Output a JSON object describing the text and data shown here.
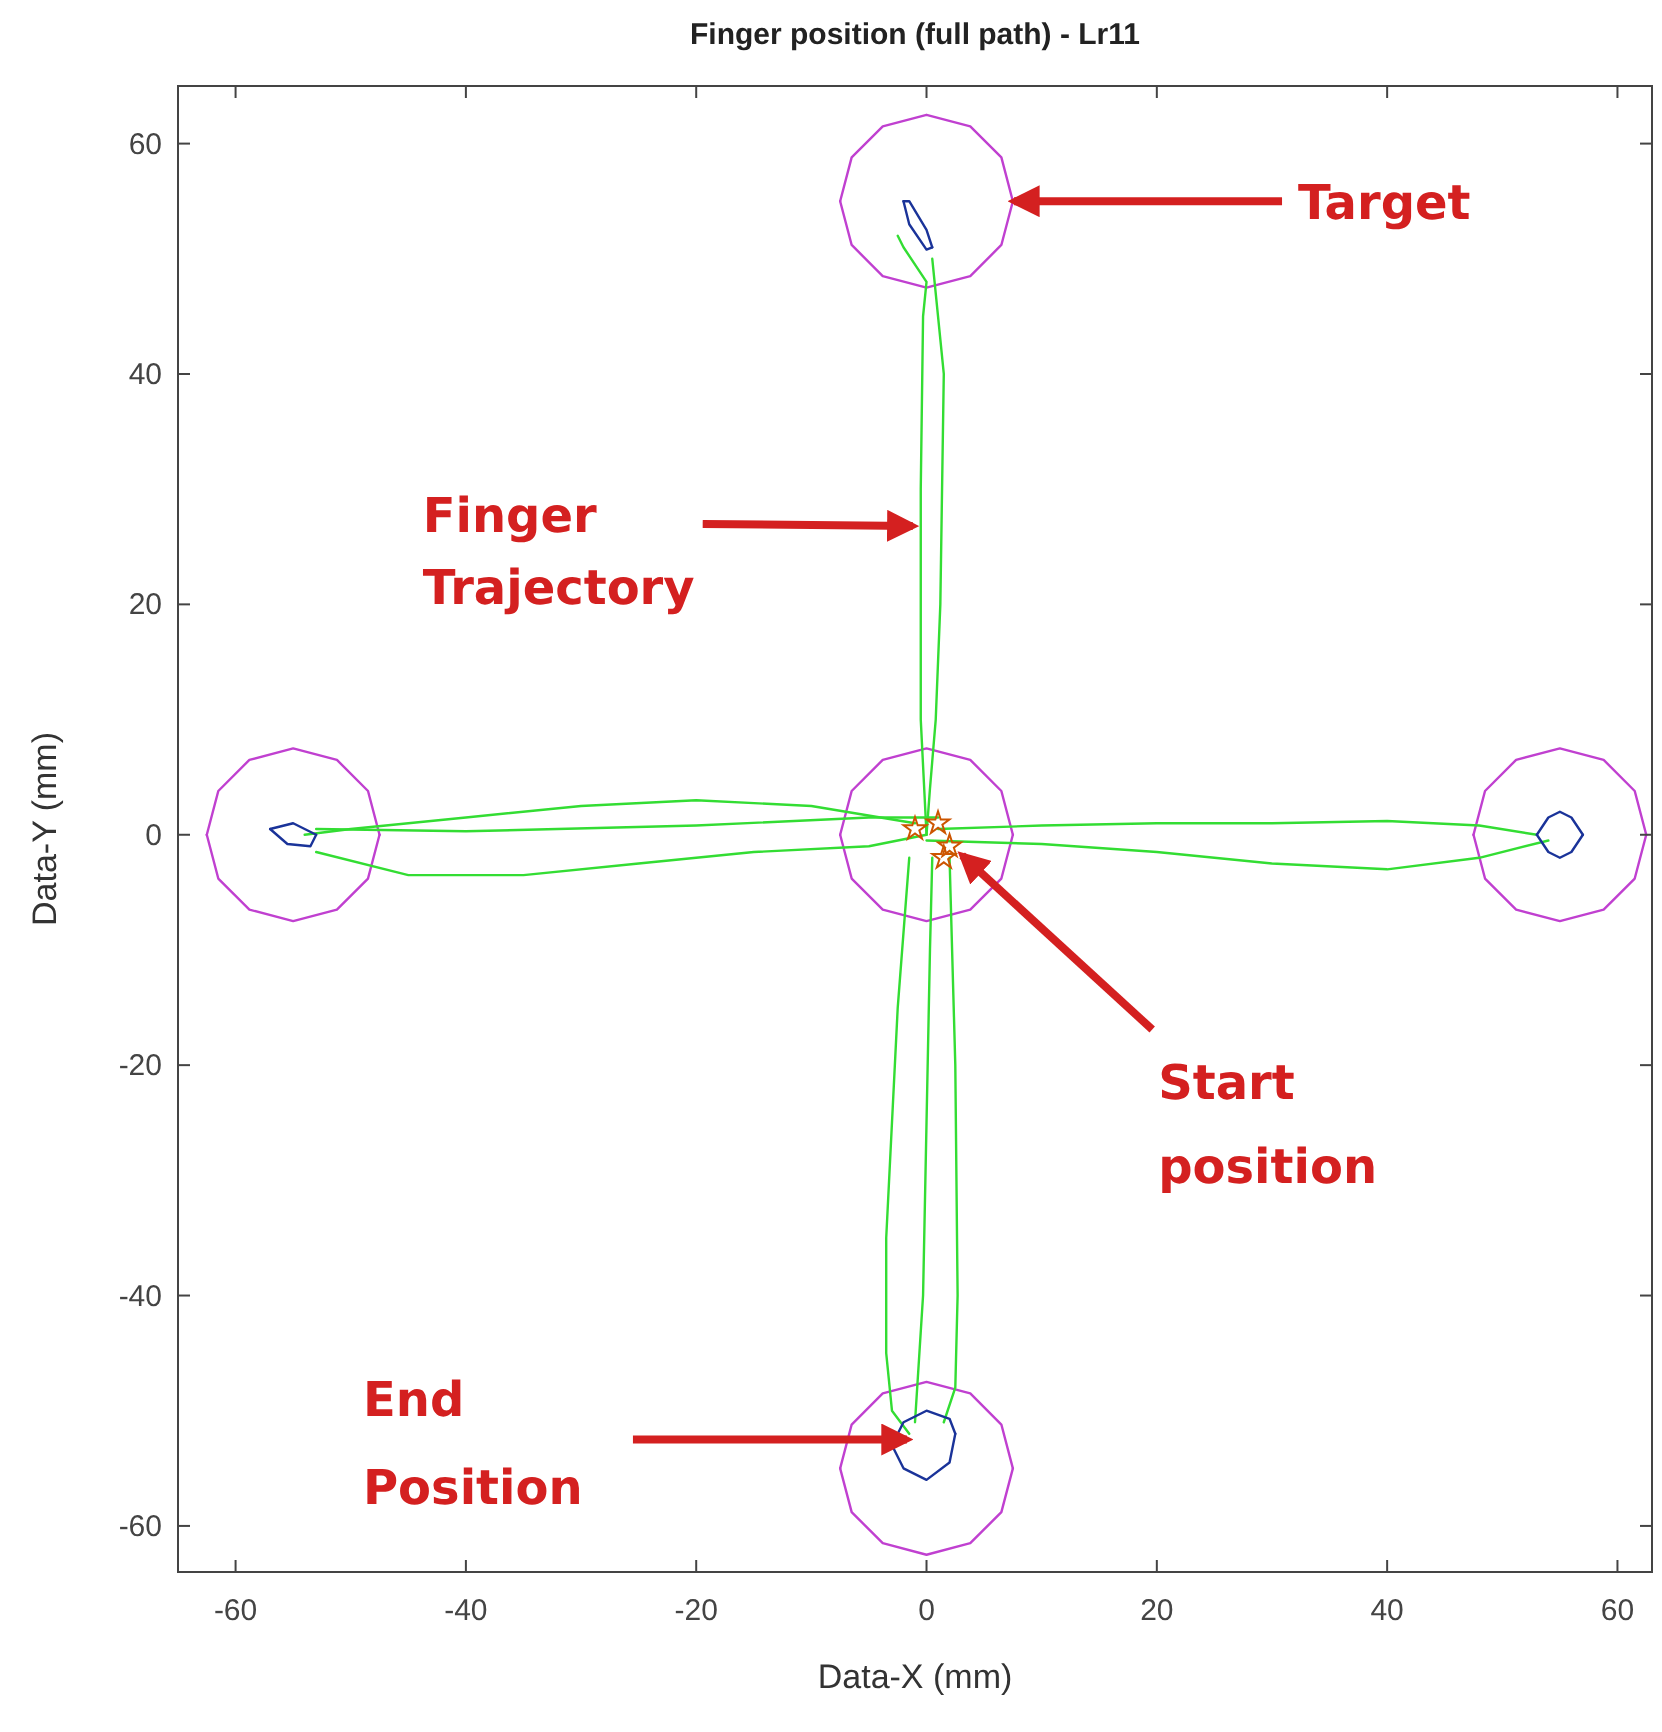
{
  "chart_data": {
    "type": "line",
    "title": "Finger position (full path) - Lr11",
    "xlabel": "Data-X (mm)",
    "ylabel": "Data-Y (mm)",
    "xlim": [
      -65,
      63
    ],
    "ylim": [
      -64,
      65
    ],
    "xticks": [
      -60,
      -40,
      -20,
      0,
      20,
      40,
      60
    ],
    "yticks": [
      -60,
      -40,
      -20,
      0,
      20,
      40,
      60
    ],
    "grid": false,
    "marker": "none",
    "line_style": "solid",
    "series": [
      {
        "color": "#c040d0",
        "x": [
          -7.5,
          -6.5,
          -3.8,
          0,
          3.8,
          6.5,
          7.5
        ],
        "values": [
          55,
          58.8,
          61.5,
          62.5,
          61.5,
          58.8,
          55
        ]
      },
      {
        "color": "#c040d0",
        "x": [
          -7.5,
          -6.5,
          -3.8,
          0,
          3.8,
          6.5,
          7.5
        ],
        "values": [
          55,
          51.2,
          48.5,
          47.5,
          48.5,
          51.2,
          55
        ]
      },
      {
        "color": "#c040d0",
        "x": [
          -62.5,
          -61.5,
          -58.8,
          -55,
          -51.2,
          -48.5,
          -47.5
        ],
        "values": [
          0,
          3.8,
          6.5,
          7.5,
          6.5,
          3.8,
          0
        ]
      },
      {
        "color": "#c040d0",
        "x": [
          -62.5,
          -61.5,
          -58.8,
          -55,
          -51.2,
          -48.5,
          -47.5
        ],
        "values": [
          0,
          -3.8,
          -6.5,
          -7.5,
          -6.5,
          -3.8,
          0
        ]
      },
      {
        "color": "#c040d0",
        "x": [
          47.5,
          48.5,
          51.2,
          55,
          58.8,
          61.5,
          62.5
        ],
        "values": [
          0,
          3.8,
          6.5,
          7.5,
          6.5,
          3.8,
          0
        ]
      },
      {
        "color": "#c040d0",
        "x": [
          47.5,
          48.5,
          51.2,
          55,
          58.8,
          61.5,
          62.5
        ],
        "values": [
          0,
          -3.8,
          -6.5,
          -7.5,
          -6.5,
          -3.8,
          0
        ]
      },
      {
        "color": "#c040d0",
        "x": [
          -7.5,
          -6.5,
          -3.8,
          0,
          3.8,
          6.5,
          7.5
        ],
        "values": [
          -55,
          -51.2,
          -48.5,
          -47.5,
          -48.5,
          -51.2,
          -55
        ]
      },
      {
        "color": "#c040d0",
        "x": [
          -7.5,
          -6.5,
          -3.8,
          0,
          3.8,
          6.5,
          7.5
        ],
        "values": [
          -55,
          -58.8,
          -61.5,
          -62.5,
          -61.5,
          -58.8,
          -55
        ]
      },
      {
        "color": "#c040d0",
        "x": [
          -7.5,
          -6.5,
          -3.8,
          0,
          3.8,
          6.5,
          7.5
        ],
        "values": [
          0,
          3.8,
          6.5,
          7.5,
          6.5,
          3.8,
          0
        ]
      },
      {
        "color": "#c040d0",
        "x": [
          -7.5,
          -6.5,
          -3.8,
          0,
          3.8,
          6.5,
          7.5
        ],
        "values": [
          0,
          -3.8,
          -6.5,
          -7.5,
          -6.5,
          -3.8,
          0
        ]
      },
      {
        "color": "#33dd33",
        "x": [
          0,
          -0.5,
          -0.5,
          -0.3,
          0,
          -2,
          -2.5
        ],
        "values": [
          0,
          10,
          30,
          45,
          48,
          51,
          52
        ]
      },
      {
        "color": "#33dd33",
        "x": [
          0.5,
          1.5,
          1.2,
          0.8,
          0.3,
          0
        ],
        "values": [
          50,
          40,
          20,
          10,
          4,
          0
        ]
      },
      {
        "color": "#33dd33",
        "x": [
          -1,
          -10,
          -20,
          -30,
          -40,
          -50,
          -54
        ],
        "values": [
          1,
          2.5,
          3,
          2.5,
          1.5,
          0.5,
          0
        ]
      },
      {
        "color": "#33dd33",
        "x": [
          -53,
          -45,
          -35,
          -25,
          -15,
          -5,
          0
        ],
        "values": [
          -1.5,
          -3.5,
          -3.5,
          -2.5,
          -1.5,
          -1,
          0
        ]
      },
      {
        "color": "#33dd33",
        "x": [
          -53,
          -40,
          -20,
          -5,
          1
        ],
        "values": [
          0.5,
          0.3,
          0.8,
          1.5,
          1.5
        ]
      },
      {
        "color": "#33dd33",
        "x": [
          1,
          10,
          20,
          30,
          40,
          48,
          53
        ],
        "values": [
          0.5,
          0.8,
          1,
          1,
          1.2,
          0.8,
          0
        ]
      },
      {
        "color": "#33dd33",
        "x": [
          54,
          48,
          40,
          30,
          20,
          10,
          0
        ],
        "values": [
          -0.5,
          -2,
          -3,
          -2.5,
          -1.5,
          -0.8,
          -0.5
        ]
      },
      {
        "color": "#33dd33",
        "x": [
          -1.5,
          -2.5,
          -3.5,
          -3.5,
          -3,
          -1.5
        ],
        "values": [
          -2,
          -15,
          -35,
          -45,
          -50,
          -52
        ]
      },
      {
        "color": "#33dd33",
        "x": [
          -1,
          -0.3,
          0,
          0.3,
          0.5
        ],
        "values": [
          -51,
          -40,
          -25,
          -10,
          -2
        ]
      },
      {
        "color": "#33dd33",
        "x": [
          2,
          2.5,
          2.7,
          2.5,
          1.5
        ],
        "values": [
          -2,
          -20,
          -40,
          -48,
          -51
        ]
      },
      {
        "color": "#1a3399",
        "x": [
          -2,
          -1.5,
          0,
          0.5
        ],
        "values": [
          55,
          55,
          52.5,
          51
        ]
      },
      {
        "color": "#1a3399",
        "x": [
          -2,
          -1.5,
          0,
          0.5
        ],
        "values": [
          55,
          53,
          50.8,
          51
        ]
      },
      {
        "color": "#1a3399",
        "x": [
          -57,
          -55,
          -53
        ],
        "values": [
          0.5,
          1,
          0
        ]
      },
      {
        "color": "#1a3399",
        "x": [
          -57,
          -55.5,
          -53.5,
          -53
        ],
        "values": [
          0.5,
          -0.8,
          -1,
          0
        ]
      },
      {
        "color": "#1a3399",
        "x": [
          53,
          54,
          55,
          56,
          57
        ],
        "values": [
          0,
          1.5,
          2,
          1.5,
          0
        ]
      },
      {
        "color": "#1a3399",
        "x": [
          53,
          54,
          55,
          56,
          57
        ],
        "values": [
          0,
          -1.5,
          -2,
          -1.5,
          0
        ]
      },
      {
        "color": "#1a3399",
        "x": [
          -3,
          -2,
          0,
          2,
          2.5
        ],
        "values": [
          -53,
          -51,
          -50,
          -50.7,
          -52
        ]
      },
      {
        "color": "#1a3399",
        "x": [
          -3,
          -2,
          0,
          2,
          2.5
        ],
        "values": [
          -53,
          -55,
          -56,
          -54.5,
          -52
        ]
      },
      {
        "type": "scatter",
        "marker": "star",
        "color": "#cc5500",
        "x": [
          1,
          2,
          -1,
          1.5
        ],
        "values": [
          1,
          -1,
          0.5,
          -2
        ]
      }
    ],
    "annotations": [
      {
        "text": "Target",
        "x": 7.6,
        "y": 55
      },
      {
        "text": "Finger Trajectory",
        "x": -1.2,
        "y": 26.8
      },
      {
        "text": "Start position",
        "x": 3.1,
        "y": -1.8
      },
      {
        "text": "End Position",
        "x": -1.7,
        "y": -52.5
      }
    ]
  }
}
